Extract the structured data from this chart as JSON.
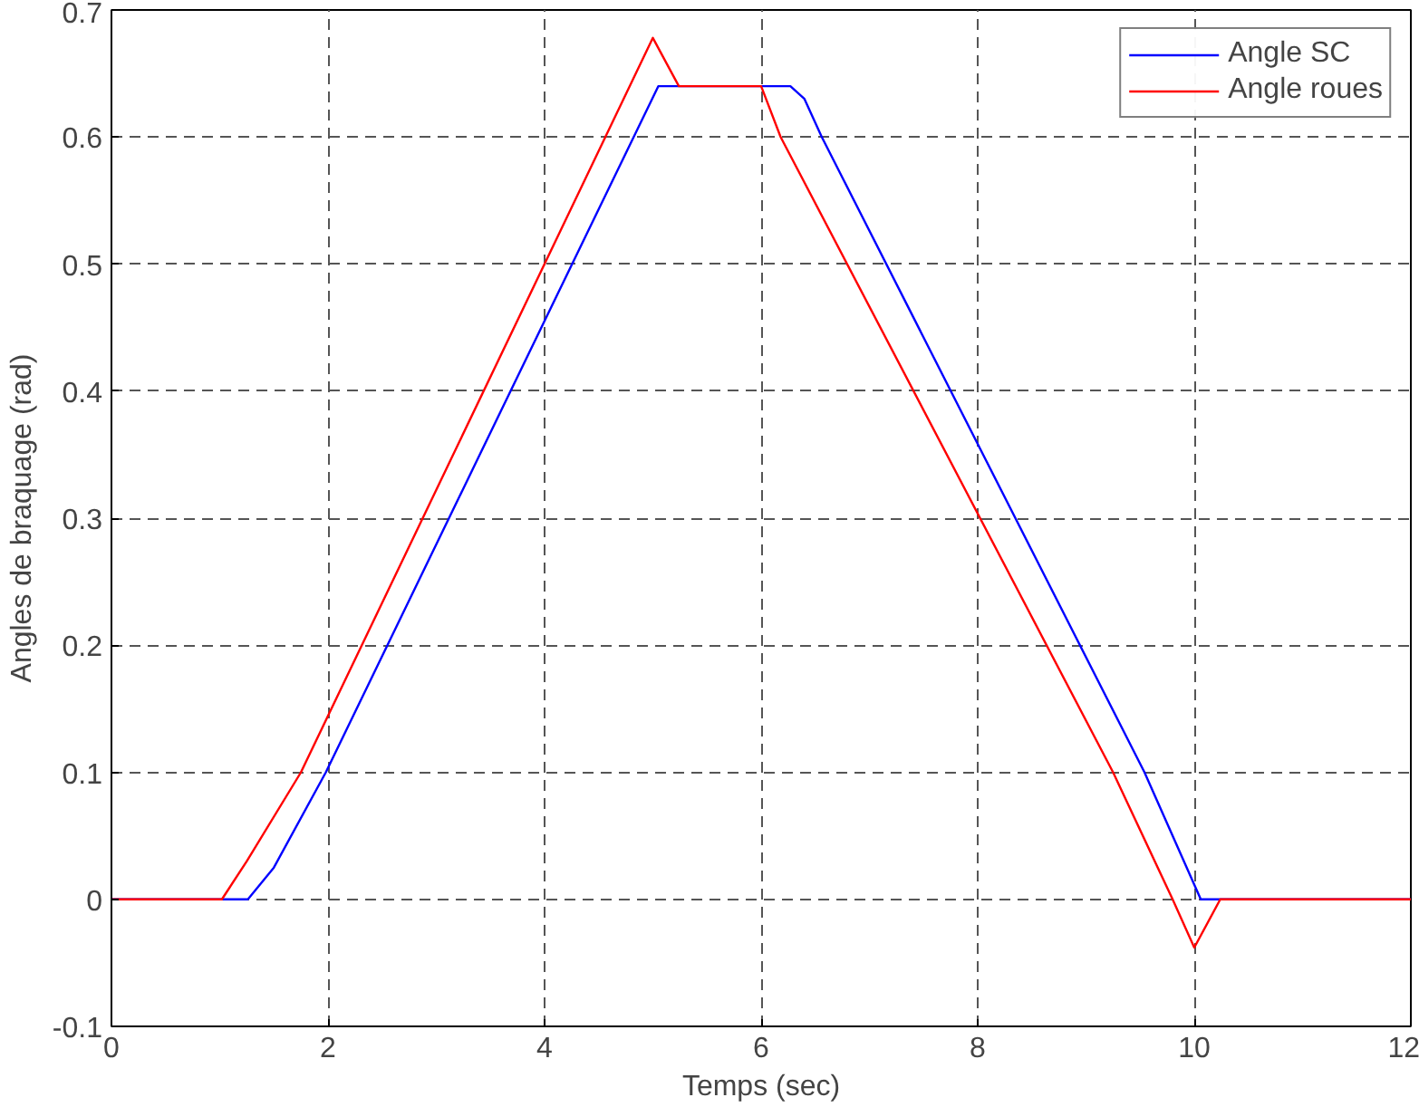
{
  "chart_data": {
    "type": "line",
    "xlabel": "Temps (sec)",
    "ylabel": "Angles de braquage (rad)",
    "xlim": [
      0,
      12
    ],
    "ylim": [
      -0.1,
      0.7
    ],
    "xticks": [
      0,
      2,
      4,
      6,
      8,
      10,
      12
    ],
    "yticks": [
      -0.1,
      0,
      0.1,
      0.2,
      0.3,
      0.4,
      0.5,
      0.6,
      0.7
    ],
    "grid": true,
    "legend": "top right",
    "line_style": "solid",
    "series": [
      {
        "name": "Angle SC",
        "color": "#0000ff",
        "x": [
          0,
          1.26,
          1.5,
          1.98,
          5.05,
          6.27,
          6.4,
          6.56,
          9.54,
          10.06,
          12
        ],
        "values": [
          0,
          0,
          0.025,
          0.1,
          0.64,
          0.64,
          0.63,
          0.6,
          0.1,
          0,
          0
        ]
      },
      {
        "name": "Angle roues",
        "color": "#ff0000",
        "x": [
          0,
          1.02,
          1.25,
          1.75,
          5.0,
          5.24,
          6.0,
          6.18,
          9.25,
          9.8,
          10.0,
          10.24,
          12
        ],
        "values": [
          0,
          0,
          0.03,
          0.1,
          0.678,
          0.64,
          0.64,
          0.6,
          0.1,
          0,
          -0.038,
          0,
          0
        ]
      }
    ]
  }
}
